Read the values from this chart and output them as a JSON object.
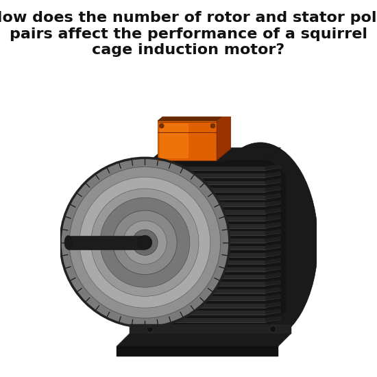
{
  "title_line1": "How does the number of rotor and stator pole",
  "title_line2": "pairs affect the performance of a squirrel",
  "title_line3": "cage induction motor?",
  "title_fontsize": 16,
  "title_fontweight": "bold",
  "background_color": "#ffffff",
  "fig_width": 5.5,
  "fig_height": 5.5,
  "title_color": "#111111"
}
